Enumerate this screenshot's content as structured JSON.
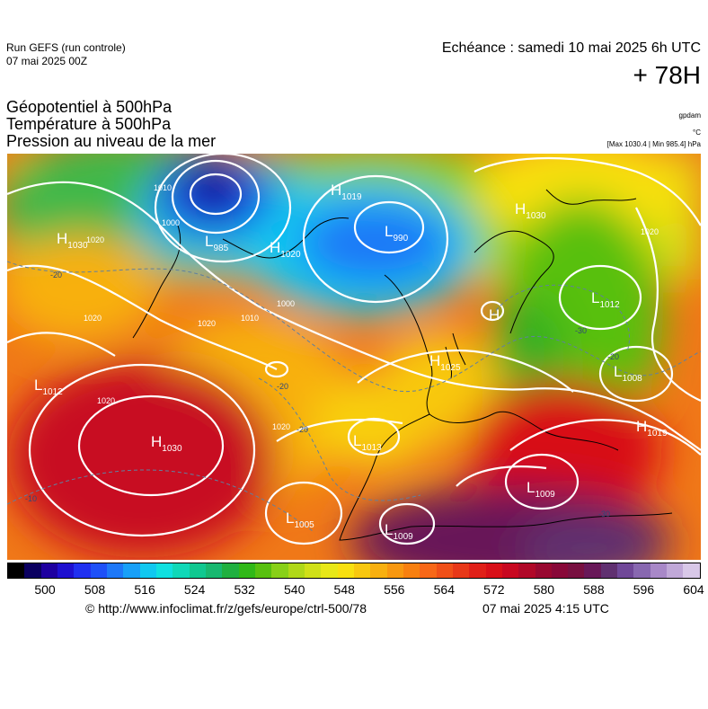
{
  "header": {
    "run_title": "Run GEFS (run controle)",
    "run_date": "07 mai 2025 00Z",
    "echeance": "Echéance : samedi 10 mai 2025 6h UTC",
    "lead_time": "+ 78H"
  },
  "titles": {
    "geopotential": "Géopotentiel à 500hPa",
    "temperature": "Température à 500hPa",
    "pressure": "Pression au niveau de la mer"
  },
  "units": {
    "geopotential": "gpdam",
    "temperature": "°C",
    "pressure_range": "[Max 1030.4 | Min 985.4] hPa"
  },
  "pressure_centers": [
    {
      "type": "H",
      "value": "1030"
    },
    {
      "type": "L",
      "value": "985"
    },
    {
      "type": "H",
      "value": "1019"
    },
    {
      "type": "L",
      "value": "990"
    },
    {
      "type": "H",
      "value": "1020"
    },
    {
      "type": "H",
      "value": "1030"
    },
    {
      "type": "L",
      "value": "1012"
    },
    {
      "type": "H",
      "value": ""
    },
    {
      "type": "H",
      "value": "1025"
    },
    {
      "type": "L",
      "value": "1008"
    },
    {
      "type": "L",
      "value": "1012"
    },
    {
      "type": "H",
      "value": "1019"
    },
    {
      "type": "H",
      "value": "1030"
    },
    {
      "type": "L",
      "value": "1013"
    },
    {
      "type": "L",
      "value": "1009"
    },
    {
      "type": "L",
      "value": "1005"
    },
    {
      "type": "L",
      "value": "1009"
    }
  ],
  "isobar_labels": [
    "1020",
    "1010",
    "1000",
    "1020",
    "1020",
    "1020",
    "1010",
    "1000",
    "1020",
    "1020"
  ],
  "isotherm_labels": [
    "-20",
    "-20",
    "-20",
    "-10",
    "-30",
    "-20",
    "-30"
  ],
  "colorbar": {
    "ticks": [
      "500",
      "508",
      "516",
      "524",
      "532",
      "540",
      "548",
      "556",
      "564",
      "572",
      "580",
      "588",
      "596",
      "604"
    ],
    "colors": [
      "#000000",
      "#0a0060",
      "#1e00a0",
      "#1e10d0",
      "#2030f0",
      "#1e50f8",
      "#1e78f8",
      "#18a0f8",
      "#10c8f0",
      "#10e0e0",
      "#10d8b8",
      "#10c890",
      "#18b870",
      "#20b040",
      "#30b818",
      "#58c010",
      "#88d018",
      "#b0d818",
      "#d0e018",
      "#e8e818",
      "#f8e010",
      "#f8c810",
      "#f8b010",
      "#f89810",
      "#f88010",
      "#f86818",
      "#f05018",
      "#e83818",
      "#e02018",
      "#d81018",
      "#c80820",
      "#b00828",
      "#980830",
      "#880838",
      "#781040",
      "#681858",
      "#603070",
      "#704898",
      "#8868b0",
      "#a888c8",
      "#c0a8d8",
      "#d8c8e8"
    ]
  },
  "footer": {
    "credit": "© http://www.infoclimat.fr/z/gefs/europe/ctrl-500/78",
    "generated": "07 mai 2025  4:15 UTC"
  }
}
